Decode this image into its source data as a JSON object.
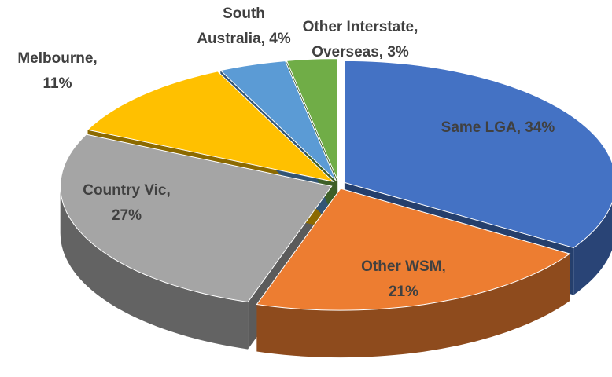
{
  "chart_data": {
    "type": "pie3d",
    "values": [
      34,
      21,
      27,
      11,
      4,
      3
    ],
    "value_labels": [
      [
        "Same LGA, 34%"
      ],
      [
        "Other WSM,",
        "21%"
      ],
      [
        "Country Vic,",
        "27%"
      ],
      [
        "Melbourne,",
        "11%"
      ],
      [
        "South",
        "Australia, 4%"
      ],
      [
        "Other Interstate,",
        "Overseas, 3%"
      ]
    ],
    "colors": [
      "#4472c4",
      "#ed7d31",
      "#a5a5a5",
      "#ffc000",
      "#5b9bd5",
      "#70ad47"
    ]
  }
}
